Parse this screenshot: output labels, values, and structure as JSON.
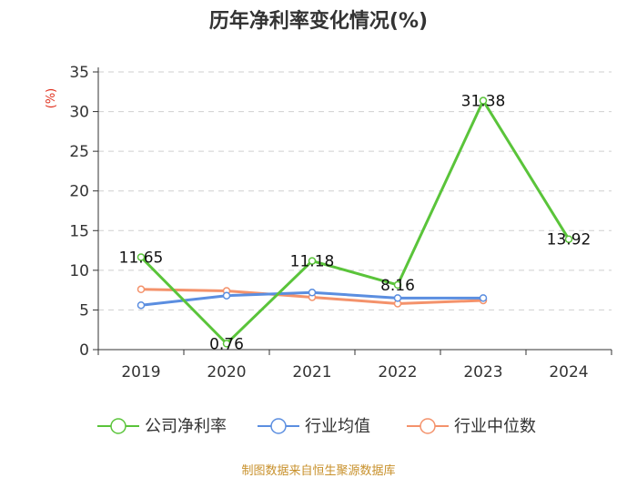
{
  "chart_data": {
    "type": "line",
    "title": "历年净利率变化情况(%)",
    "ylabel": "(%)",
    "xlabel": "",
    "categories": [
      "2019",
      "2020",
      "2021",
      "2022",
      "2023",
      "2024"
    ],
    "ylim": [
      0,
      35
    ],
    "yticks": [
      "0",
      "5",
      "10",
      "15",
      "20",
      "25",
      "30",
      "35"
    ],
    "grid": true,
    "legend_position": "bottom",
    "series": [
      {
        "name": "公司净利率",
        "color": "#5ac43a",
        "values": [
          11.65,
          0.76,
          11.18,
          8.16,
          31.38,
          13.92
        ],
        "labels": [
          "11.65",
          "0.76",
          "11.18",
          "8.16",
          "31.38",
          "13.92"
        ]
      },
      {
        "name": "行业均值",
        "color": "#5b8ee0",
        "values": [
          5.6,
          6.8,
          7.2,
          6.5,
          6.5,
          null
        ]
      },
      {
        "name": "行业中位数",
        "color": "#f4926b",
        "values": [
          7.6,
          7.4,
          6.6,
          5.8,
          6.2,
          null
        ]
      }
    ]
  },
  "source": "制图数据来自恒生聚源数据库"
}
